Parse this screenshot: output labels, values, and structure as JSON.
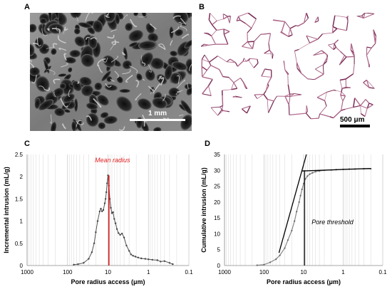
{
  "panels": {
    "a": {
      "letter": "A",
      "scalebar_label": "1 mm"
    },
    "b": {
      "letter": "B",
      "scalebar_label": "500 μm"
    },
    "c": {
      "letter": "C"
    },
    "d": {
      "letter": "D"
    }
  },
  "chart_data": [
    {
      "type": "line",
      "panel": "C",
      "title": "",
      "xlabel": "Pore radius access (μm)",
      "ylabel": "Incremental intrusion  (mL/g)",
      "x_scale": "log",
      "x_reversed": true,
      "xlim": [
        1000,
        0.1
      ],
      "ylim": [
        0,
        2.5
      ],
      "x_ticks": [
        "1000",
        "100",
        "10",
        "1",
        "0.1"
      ],
      "y_ticks": [
        "0",
        "0.5",
        "1",
        "1.5",
        "2",
        "2.5"
      ],
      "grid": "vertical minor gridlines",
      "annotation": {
        "text": "Mean radius",
        "x": 9.5,
        "color": "#e02020"
      },
      "series": [
        {
          "x": [
            70,
            55,
            40,
            30,
            25,
            22,
            20,
            18,
            16,
            15,
            14,
            13,
            12,
            11.5,
            11,
            10.5,
            10,
            9.5,
            9,
            8.5,
            8,
            7.5,
            7,
            6.5,
            6,
            5.5,
            5,
            4.5,
            4,
            3.5,
            3,
            2.7,
            2.4,
            2.1,
            1.8,
            1.5,
            1.2,
            1.0,
            0.8,
            0.6,
            0.5,
            0.4,
            0.3,
            0.25
          ],
          "y": [
            0.02,
            0.03,
            0.06,
            0.15,
            0.3,
            0.5,
            0.75,
            1.0,
            1.22,
            1.28,
            1.22,
            1.25,
            1.4,
            1.5,
            1.65,
            1.85,
            2.03,
            1.8,
            1.5,
            1.3,
            1.18,
            1.2,
            1.05,
            0.95,
            0.82,
            0.73,
            0.69,
            0.72,
            0.63,
            0.45,
            0.33,
            0.25,
            0.22,
            0.2,
            0.18,
            0.16,
            0.15,
            0.14,
            0.13,
            0.12,
            0.09,
            0.1,
            0.06,
            0.03
          ]
        }
      ]
    },
    {
      "type": "line",
      "panel": "D",
      "title": "",
      "xlabel": "Pore radius access (μm)",
      "ylabel": "Cumulative intrusion  (mL/g)",
      "x_scale": "log",
      "x_reversed": true,
      "xlim": [
        1000,
        0.1
      ],
      "ylim": [
        0,
        35
      ],
      "x_ticks": [
        "1000",
        "100",
        "10",
        "1",
        "0.1"
      ],
      "y_ticks": [
        "0",
        "5",
        "10",
        "15",
        "20",
        "25",
        "30",
        "35"
      ],
      "grid": "vertical minor gridlines",
      "annotation": {
        "text": "Pore threshold",
        "x": 9.5
      },
      "tangent_lines": [
        {
          "x": [
            42,
            8.5
          ],
          "y": [
            4,
            35
          ]
        },
        {
          "x": [
            11,
            0.2
          ],
          "y": [
            29.8,
            30.6
          ]
        }
      ],
      "series": [
        {
          "x": [
            150,
            100,
            70,
            50,
            40,
            30,
            25,
            20,
            17,
            15,
            13,
            12,
            11,
            10,
            9,
            8,
            7,
            6,
            5,
            4,
            3,
            2,
            1.5,
            1,
            0.7,
            0.5,
            0.3,
            0.2
          ],
          "y": [
            0.1,
            0.3,
            1,
            2,
            3.2,
            5.5,
            8,
            11,
            14,
            17,
            20,
            22,
            24,
            25.8,
            27.3,
            28.2,
            28.8,
            29.2,
            29.6,
            29.8,
            30,
            30.1,
            30.2,
            30.3,
            30.4,
            30.4,
            30.5,
            30.5
          ]
        }
      ]
    }
  ]
}
